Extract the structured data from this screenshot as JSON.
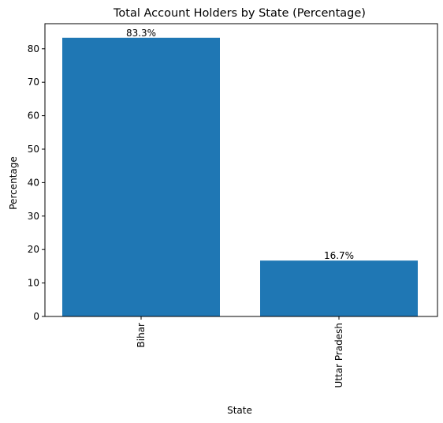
{
  "chart_data": {
    "type": "bar",
    "title": "Total Account Holders by State (Percentage)",
    "xlabel": "State",
    "ylabel": "Percentage",
    "categories": [
      "Bihar",
      "Uttar Pradesh"
    ],
    "values": [
      83.3,
      16.7
    ],
    "data_labels": [
      "83.3%",
      "16.7%"
    ],
    "ylim": [
      0,
      87.5
    ],
    "yticks": [
      0,
      10,
      20,
      30,
      40,
      50,
      60,
      70,
      80
    ],
    "bar_color": "#1f77b4",
    "grid": false,
    "legend": "none"
  }
}
